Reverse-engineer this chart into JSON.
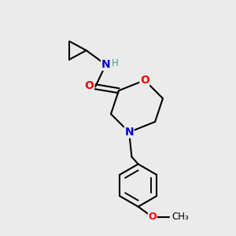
{
  "bg_color": "#ebebeb",
  "bond_color": "#000000",
  "bond_width": 1.5,
  "atom_colors": {
    "O": "#ff0000",
    "N": "#0000cd",
    "C": "#000000",
    "H": "#4a9a9a"
  },
  "font_size_atom": 10,
  "font_size_small": 8.5
}
